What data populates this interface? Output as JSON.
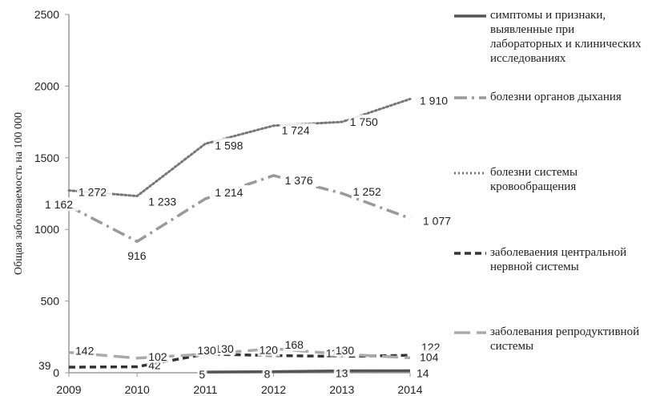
{
  "chart_data": {
    "type": "line",
    "ylabel": "Общая заболеваемость на 100 000",
    "xlabel": "",
    "x": [
      "2009",
      "2010",
      "2011",
      "2012",
      "2013",
      "2014"
    ],
    "ylim": [
      0,
      2500
    ],
    "yticks": [
      "0",
      "500",
      "1000",
      "1500",
      "2000",
      "2500"
    ],
    "grid": false,
    "legend_position": "right",
    "series": [
      {
        "name": "симптомы и признаки, выявленные при лабораторных и клинических исследованиях",
        "values": [
          null,
          null,
          5,
          8,
          13,
          14
        ],
        "labels": [
          "",
          "",
          "5",
          "8",
          "13",
          "14"
        ],
        "style": "solid",
        "color": "#555555"
      },
      {
        "name": "болезни органов дыхания",
        "values": [
          1162,
          916,
          1214,
          1376,
          1252,
          1077
        ],
        "labels": [
          "1 162",
          "916",
          "1 214",
          "1 376",
          "1 252",
          "1 077"
        ],
        "style": "dashdot",
        "color": "#999999"
      },
      {
        "name": "болезни системы кровообращения",
        "values": [
          1272,
          1233,
          1598,
          1724,
          1750,
          1910
        ],
        "labels": [
          "1 272",
          "1 233",
          "1 598",
          "1 724",
          "1 750",
          "1 910"
        ],
        "style": "dotted",
        "color": "#777777"
      },
      {
        "name": "заболеваения центральной нервной системы",
        "values": [
          39,
          42,
          130,
          120,
          114,
          122
        ],
        "labels": [
          "39",
          "42",
          "130",
          "120",
          "114",
          "122"
        ],
        "style": "dashed",
        "color": "#333333"
      },
      {
        "name": "заболевания репродуктивной системы",
        "values": [
          142,
          102,
          130,
          168,
          130,
          104
        ],
        "labels": [
          "142",
          "102",
          "130",
          "168",
          "130",
          "104"
        ],
        "style": "longdash",
        "color": "#aaaaaa"
      }
    ]
  }
}
